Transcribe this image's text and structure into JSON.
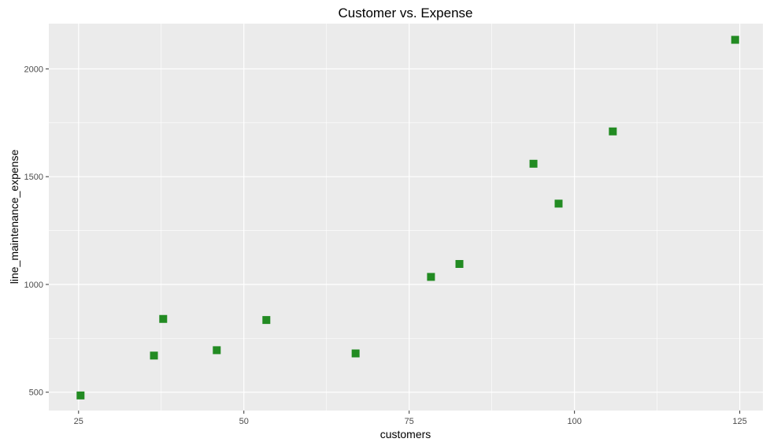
{
  "chart_data": {
    "type": "scatter",
    "title": "Customer vs. Expense",
    "xlabel": "customers",
    "ylabel": "line_maintenance_expense",
    "xlim": [
      20.5,
      128.5
    ],
    "ylim": [
      415,
      2210
    ],
    "xticks": [
      25,
      50,
      75,
      100,
      125
    ],
    "yticks": [
      500,
      1000,
      1500,
      2000
    ],
    "xtick_labels": [
      "25",
      "50",
      "75",
      "100",
      "125"
    ],
    "ytick_labels": [
      "500",
      "1000",
      "1500",
      "2000"
    ],
    "grid": true,
    "marker": "square",
    "colors": {
      "panel": "#ebebeb",
      "grid": "#ffffff",
      "point": "#228b22"
    },
    "points": [
      {
        "x": 25.3,
        "y": 485
      },
      {
        "x": 36.4,
        "y": 670
      },
      {
        "x": 37.8,
        "y": 840
      },
      {
        "x": 45.9,
        "y": 695
      },
      {
        "x": 53.4,
        "y": 835
      },
      {
        "x": 66.9,
        "y": 680
      },
      {
        "x": 78.3,
        "y": 1035
      },
      {
        "x": 82.6,
        "y": 1095
      },
      {
        "x": 93.8,
        "y": 1560
      },
      {
        "x": 97.6,
        "y": 1375
      },
      {
        "x": 105.8,
        "y": 1710
      },
      {
        "x": 124.3,
        "y": 2135
      }
    ]
  }
}
